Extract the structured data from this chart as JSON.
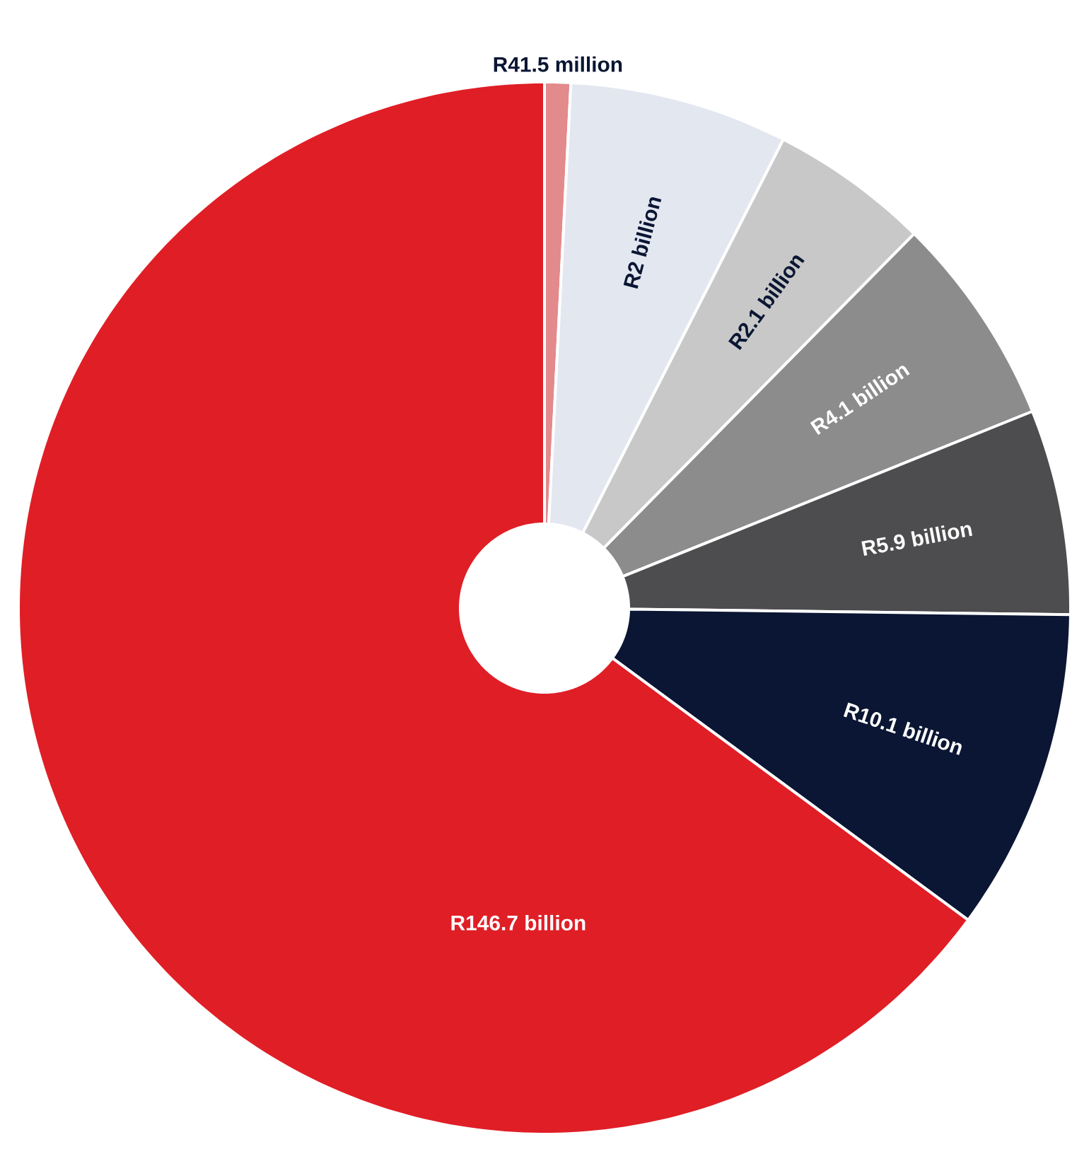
{
  "chart_data": {
    "type": "donut",
    "categories": [
      null,
      null,
      null,
      null,
      null,
      null,
      null
    ],
    "values": [
      0.8,
      6.7,
      4.9,
      6.5,
      6.3,
      9.9,
      64.9
    ],
    "colors": [
      "#e38a8c",
      "#e3e7f0",
      "#c8c8c8",
      "#8c8c8c",
      "#4d4d4f",
      "#0a1633",
      "#e01e26"
    ],
    "value_labels": [
      "R41.5 million",
      "R2 billion",
      "R2.1 billion",
      "R4.1 billion",
      "R5.9 billion",
      "R10.1 billion",
      "R146.7 billion"
    ]
  }
}
